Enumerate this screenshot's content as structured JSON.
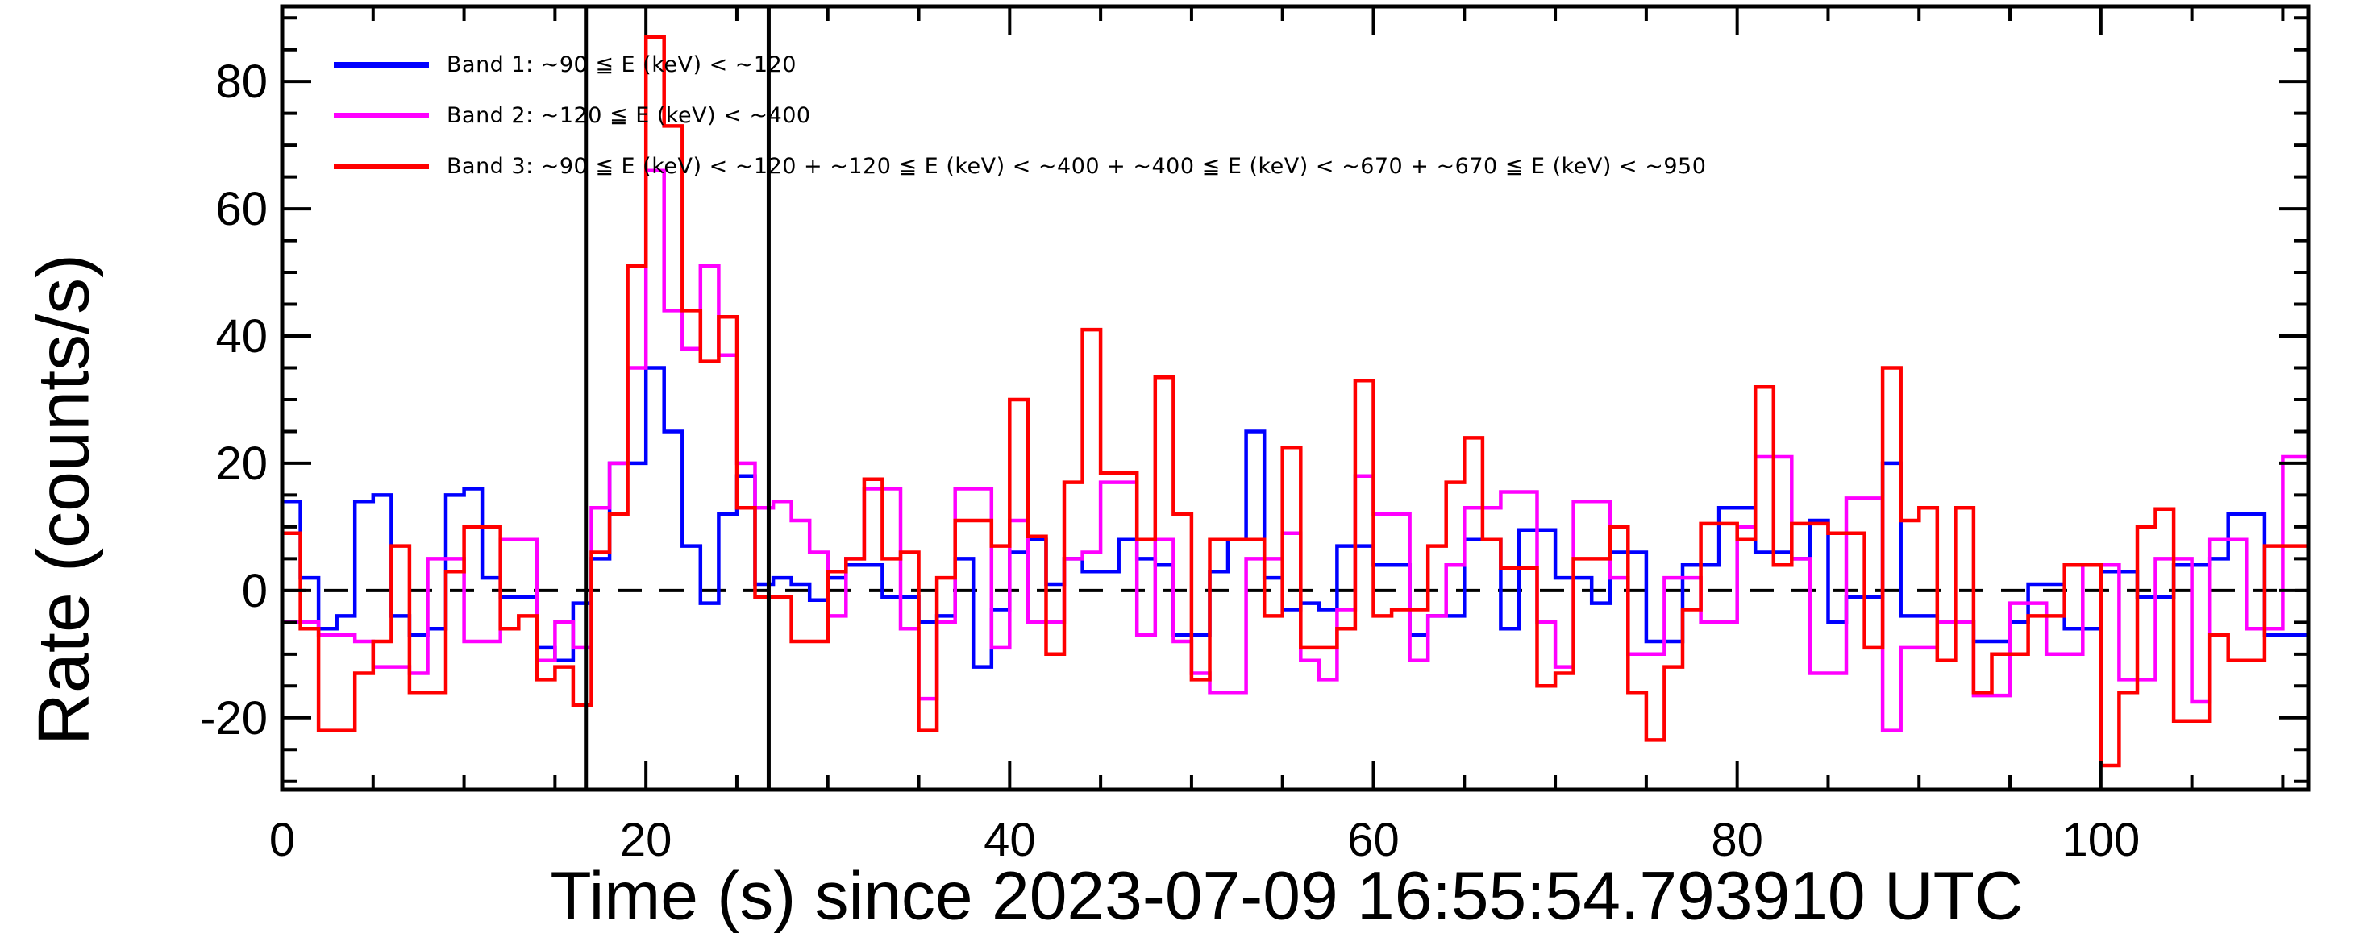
{
  "figure": {
    "background": "#ffffff",
    "frame_color": "#000000"
  },
  "chart_data": {
    "type": "step-histogram",
    "title": "",
    "xlabel": "Time (s) since 2023-07-09 16:55:54.793910 UTC",
    "ylabel": "Rate (counts/s)",
    "xlim": [
      0,
      111.4
    ],
    "ylim": [
      -31.3,
      91.8
    ],
    "xticks_major": [
      0,
      20,
      40,
      60,
      80,
      100
    ],
    "xtick_minor_step": 5,
    "yticks_major": [
      -20,
      0,
      20,
      40,
      60,
      80
    ],
    "ytick_minor_step": 5,
    "grid": "off",
    "legend_position": "top-left-inside",
    "bin_width_s": 1,
    "bin_start_times": "t = 0,1,2,...,110 seconds",
    "series": [
      {
        "name": "Band 1",
        "label": "Band 1: ~90 ≦ E (keV) < ~120",
        "color": "#0000ff",
        "values": [
          14,
          2,
          -6,
          -4,
          14,
          15,
          -4,
          -7,
          -6,
          15,
          16,
          2,
          -1,
          -1,
          -9,
          -11,
          -2,
          5,
          20,
          20,
          35,
          25,
          7,
          -2,
          12,
          18,
          1,
          2,
          1,
          -1.5,
          2,
          4,
          4,
          -1,
          -1,
          -5,
          -4,
          5,
          -12,
          -3,
          6,
          8,
          1,
          5,
          3,
          3,
          8,
          5,
          4,
          -7,
          -7,
          3,
          8,
          25,
          2,
          -3,
          -2,
          -3,
          7,
          7,
          4,
          4,
          -7,
          -4,
          -4,
          8,
          8,
          -6,
          9.5,
          9.5,
          2,
          2,
          -2,
          6,
          6,
          -8,
          -8,
          4,
          4,
          13,
          13,
          6,
          6,
          5,
          11,
          -5,
          -1,
          -1,
          20,
          -4,
          -4,
          -5,
          -5,
          -8,
          -8,
          -5,
          1,
          1,
          -6,
          -6,
          3,
          3,
          -1,
          -1,
          4,
          4,
          5,
          12,
          12,
          -7,
          -7
        ]
      },
      {
        "name": "Band 2",
        "label": "Band 2: ~120 ≦ E (keV) < ~400",
        "color": "#ff00ff",
        "values": [
          -5,
          -5,
          -7,
          -7,
          -8,
          -12,
          -12,
          -13,
          5,
          5,
          -8,
          -8,
          8,
          8,
          -11,
          -5,
          -9,
          13,
          20,
          35,
          66,
          44,
          38,
          51,
          37,
          20,
          13,
          14,
          11,
          6,
          -4,
          5,
          16,
          16,
          -6,
          -17,
          -5,
          16,
          16,
          -9,
          11,
          -5,
          -5,
          5,
          6,
          17,
          17,
          -7,
          8,
          -8,
          -13,
          -16,
          -16,
          5,
          5,
          9,
          -11,
          -14,
          -3,
          18,
          12,
          12,
          -11,
          -4,
          4,
          13,
          13,
          15.5,
          15.5,
          -5,
          -12,
          14,
          14,
          2,
          -10,
          -10,
          2,
          2,
          -5,
          -5,
          10,
          21,
          21,
          5,
          -13,
          -13,
          14.5,
          14.5,
          -22,
          -9,
          -9,
          -5,
          -5,
          -16.5,
          -16.5,
          -2,
          -2,
          -10,
          -10,
          4,
          4,
          -14,
          -14,
          5,
          5,
          -17.5,
          8,
          8,
          -6,
          -6,
          21
        ]
      },
      {
        "name": "Band 3",
        "label": "Band 3: ~90 ≦ E (keV) < ~120 + ~120 ≦ E (keV) < ~400 + ~400 ≦ E (keV) < ~670 + ~670 ≦ E (keV) < ~950",
        "color": "#ff0000",
        "values": [
          9,
          -6,
          -22,
          -22,
          -13,
          -8,
          7,
          -16,
          -16,
          3,
          10,
          10,
          -6,
          -4,
          -14,
          -12,
          -18,
          6,
          12,
          51,
          87,
          73,
          44,
          36,
          43,
          13,
          -1,
          -1,
          -8,
          -8,
          3,
          5,
          17.5,
          5,
          6,
          -22,
          2,
          11,
          11,
          7,
          30,
          8.5,
          -10,
          17,
          41,
          18.5,
          18.5,
          8,
          33.5,
          12,
          -14,
          8,
          8,
          8,
          -4,
          22.5,
          -9,
          -9,
          -6,
          33,
          -4,
          -3,
          -3,
          7,
          17,
          24,
          8,
          3.5,
          3.5,
          -15,
          -13,
          5,
          5,
          10,
          -16,
          -23.5,
          -12,
          -3,
          10.5,
          10.5,
          8,
          32,
          4,
          10.5,
          10.5,
          9,
          9,
          -9,
          35,
          11,
          13,
          -11,
          13,
          -16,
          -10,
          -10,
          -4,
          -4,
          4,
          4,
          -27.5,
          -16,
          10,
          12.8,
          -20.5,
          -20.5,
          -7,
          -11,
          -11,
          7,
          7
        ]
      }
    ],
    "vlines": {
      "comment": "solid black vertical burst-interval markers",
      "color": "#000000",
      "positions": [
        16.7,
        26.75
      ]
    },
    "zero_line": {
      "y": 0,
      "style": "dashed",
      "color": "#000000"
    }
  },
  "legend": {
    "entries": [
      {
        "label": "Band 1: ~90 ≦ E (keV) < ~120"
      },
      {
        "label": "Band 2: ~120 ≦ E (keV) < ~400"
      },
      {
        "label": "Band 3: ~90 ≦ E (keV) < ~120 + ~120 ≦ E (keV) < ~400 + ~400 ≦ E (keV) < ~670 + ~670 ≦ E (keV) < ~950"
      }
    ]
  }
}
